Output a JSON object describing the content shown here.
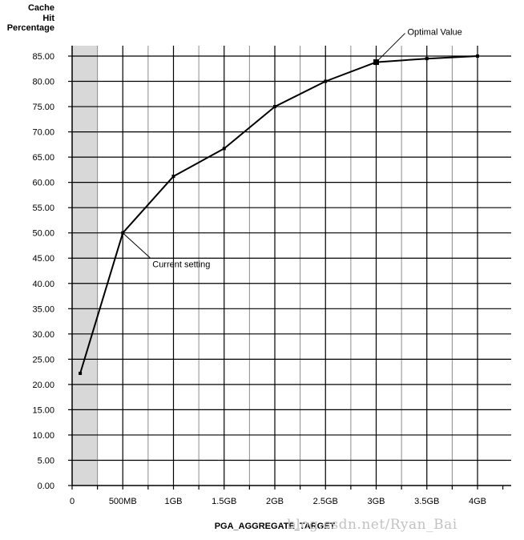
{
  "chart_data": {
    "type": "line",
    "title": "",
    "ylabel_lines": [
      "Cache",
      "Hit",
      "Percentage"
    ],
    "xlabel": "PGA_AGGREGATE_TARGET",
    "x_ticks": [
      {
        "value": 0,
        "label": "0"
      },
      {
        "value": 0.5,
        "label": "500MB"
      },
      {
        "value": 1,
        "label": "1GB"
      },
      {
        "value": 1.5,
        "label": "1.5GB"
      },
      {
        "value": 2,
        "label": "2GB"
      },
      {
        "value": 2.5,
        "label": "2.5GB"
      },
      {
        "value": 3,
        "label": "3GB"
      },
      {
        "value": 3.5,
        "label": "3.5GB"
      },
      {
        "value": 4,
        "label": "4GB"
      }
    ],
    "y_ticks": [
      "0.00",
      "5.00",
      "10.00",
      "15.00",
      "20.00",
      "25.00",
      "30.00",
      "35.00",
      "40.00",
      "45.00",
      "50.00",
      "55.00",
      "60.00",
      "65.00",
      "70.00",
      "75.00",
      "80.00",
      "85.00"
    ],
    "xlim": [
      0,
      4.25
    ],
    "ylim": [
      0,
      85
    ],
    "grid": true,
    "shaded_region": {
      "x_from": 0,
      "x_to": 0.25,
      "color": "#d8d8d8"
    },
    "series": [
      {
        "points": [
          {
            "x": 0.08,
            "y": 22.2
          },
          {
            "x": 0.5,
            "y": 50
          },
          {
            "x": 1,
            "y": 61.2
          },
          {
            "x": 1.5,
            "y": 66.7
          },
          {
            "x": 2,
            "y": 75
          },
          {
            "x": 2.5,
            "y": 80
          },
          {
            "x": 3,
            "y": 83.8
          },
          {
            "x": 3.5,
            "y": 84.5
          },
          {
            "x": 4,
            "y": 85
          }
        ]
      }
    ],
    "annotations": [
      {
        "text": "Current setting",
        "x": 0.5,
        "y": 50
      },
      {
        "text": "Optimal Value",
        "x": 3,
        "y": 83.8
      }
    ],
    "line_color": "#000000",
    "grid_color": "#000000",
    "minor_grid_color": "#8c8c8c"
  },
  "watermark": "blog.csdn.net/Ryan_Bai"
}
